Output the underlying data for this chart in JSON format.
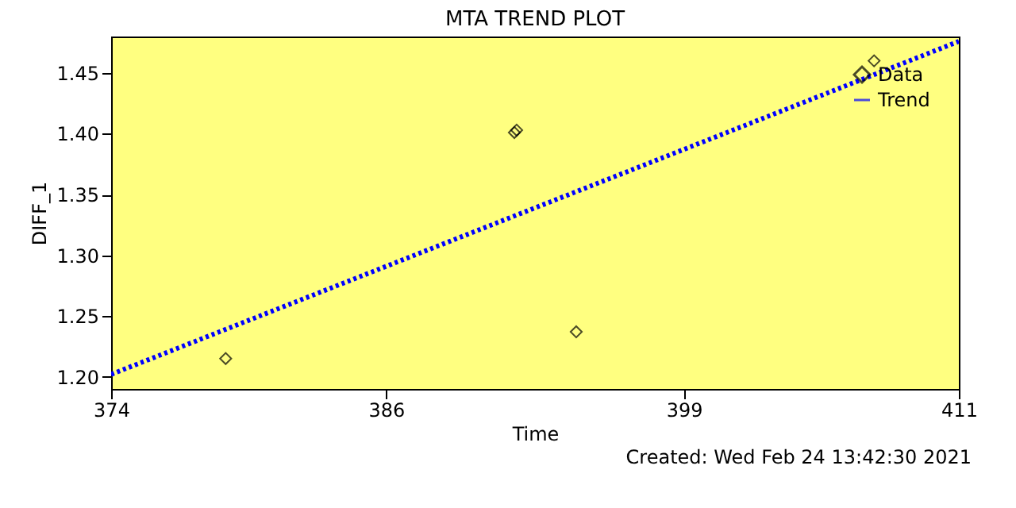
{
  "chart_data": {
    "type": "scatter",
    "title": "MTA TREND PLOT",
    "xlabel": "Time",
    "ylabel": "DIFF_1",
    "annotations": [
      "Created: Wed Feb 24 13:42:30 2021"
    ],
    "series": [
      {
        "name": "Data",
        "color": "#000000",
        "marker": "diamond",
        "x": [
          379.0,
          391.6,
          391.7,
          394.3,
          407.3
        ],
        "values": [
          1.215,
          1.401,
          1.403,
          1.237,
          1.46
        ]
      },
      {
        "name": "Trend",
        "type": "line",
        "color": "#0000ff",
        "line_style": "dotted",
        "x": [
          374,
          411
        ],
        "values": [
          1.202,
          1.476
        ]
      }
    ],
    "xlim": [
      374,
      411
    ],
    "xticks": [
      374,
      386,
      399,
      411
    ],
    "ylim": [
      1.19,
      1.48
    ],
    "yticks": [
      {
        "value": 1.2,
        "label": "1.20"
      },
      1.25,
      {
        "value": 1.3,
        "label": "1.30"
      },
      1.35,
      {
        "value": 1.4,
        "label": "1.40"
      },
      1.45
    ],
    "grid": false,
    "legend": "top right"
  }
}
